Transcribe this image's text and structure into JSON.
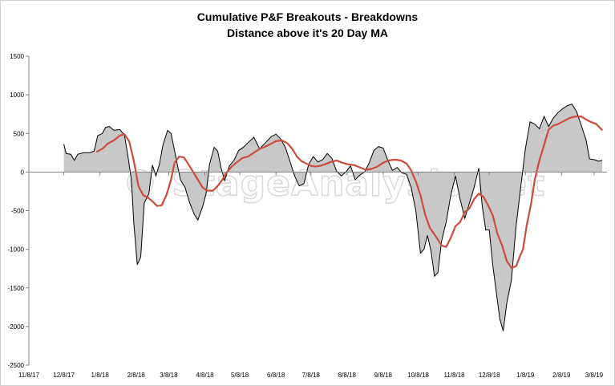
{
  "chart_data": {
    "type": "area",
    "title": "Cumulative P&F Breakouts - Breakdowns",
    "subtitle": "Distance above it's 20 Day MA",
    "xlabel": "",
    "ylabel": "",
    "ylim": [
      -2500,
      1500
    ],
    "y_ticks": [
      1500,
      1000,
      500,
      0,
      -500,
      -1000,
      -1500,
      -2000,
      -2500
    ],
    "x_ticks": [
      "11/8/17",
      "12/8/17",
      "1/8/18",
      "2/8/18",
      "3/8/18",
      "4/8/18",
      "5/8/18",
      "6/8/18",
      "7/8/18",
      "8/8/18",
      "9/8/18",
      "10/8/18",
      "11/8/18",
      "12/8/18",
      "1/8/19",
      "2/8/19",
      "3/8/19"
    ],
    "xlim": [
      "2017-11-08",
      "2019-03-19"
    ],
    "grid": false,
    "legend": "none",
    "watermark": "© StageAnalysis.net",
    "series": [
      {
        "style": "filled area",
        "fill_color": "#c8c8c8",
        "line_color": "#000000",
        "points": [
          [
            "2017-12-08",
            360
          ],
          [
            "2017-12-10",
            240
          ],
          [
            "2017-12-14",
            230
          ],
          [
            "2017-12-17",
            150
          ],
          [
            "2017-12-20",
            230
          ],
          [
            "2017-12-25",
            250
          ],
          [
            "2017-12-30",
            250
          ],
          [
            "2018-01-03",
            270
          ],
          [
            "2018-01-06",
            470
          ],
          [
            "2018-01-10",
            500
          ],
          [
            "2018-01-13",
            580
          ],
          [
            "2018-01-16",
            590
          ],
          [
            "2018-01-20",
            540
          ],
          [
            "2018-01-25",
            550
          ],
          [
            "2018-01-29",
            480
          ],
          [
            "2018-02-01",
            200
          ],
          [
            "2018-02-04",
            -100
          ],
          [
            "2018-02-06",
            -650
          ],
          [
            "2018-02-09",
            -1200
          ],
          [
            "2018-02-12",
            -1100
          ],
          [
            "2018-02-15",
            -400
          ],
          [
            "2018-02-19",
            -280
          ],
          [
            "2018-02-22",
            90
          ],
          [
            "2018-02-25",
            -50
          ],
          [
            "2018-02-28",
            100
          ],
          [
            "2018-03-03",
            350
          ],
          [
            "2018-03-07",
            540
          ],
          [
            "2018-03-10",
            500
          ],
          [
            "2018-03-14",
            200
          ],
          [
            "2018-03-18",
            -100
          ],
          [
            "2018-03-22",
            -200
          ],
          [
            "2018-03-26",
            -400
          ],
          [
            "2018-03-30",
            -550
          ],
          [
            "2018-04-02",
            -620
          ],
          [
            "2018-04-06",
            -450
          ],
          [
            "2018-04-09",
            -280
          ],
          [
            "2018-04-12",
            100
          ],
          [
            "2018-04-16",
            320
          ],
          [
            "2018-04-19",
            270
          ],
          [
            "2018-04-22",
            50
          ],
          [
            "2018-04-25",
            -110
          ],
          [
            "2018-04-29",
            80
          ],
          [
            "2018-05-03",
            150
          ],
          [
            "2018-05-07",
            280
          ],
          [
            "2018-05-11",
            320
          ],
          [
            "2018-05-15",
            380
          ],
          [
            "2018-05-20",
            450
          ],
          [
            "2018-05-25",
            300
          ],
          [
            "2018-05-30",
            380
          ],
          [
            "2018-06-04",
            460
          ],
          [
            "2018-06-08",
            490
          ],
          [
            "2018-06-12",
            430
          ],
          [
            "2018-06-16",
            320
          ],
          [
            "2018-06-20",
            140
          ],
          [
            "2018-06-24",
            -50
          ],
          [
            "2018-06-28",
            -180
          ],
          [
            "2018-07-02",
            -150
          ],
          [
            "2018-07-06",
            100
          ],
          [
            "2018-07-10",
            200
          ],
          [
            "2018-07-14",
            130
          ],
          [
            "2018-07-18",
            160
          ],
          [
            "2018-07-22",
            240
          ],
          [
            "2018-07-26",
            180
          ],
          [
            "2018-07-30",
            10
          ],
          [
            "2018-08-03",
            -50
          ],
          [
            "2018-08-07",
            0
          ],
          [
            "2018-08-11",
            80
          ],
          [
            "2018-08-15",
            -100
          ],
          [
            "2018-08-19",
            -40
          ],
          [
            "2018-08-23",
            0
          ],
          [
            "2018-08-27",
            120
          ],
          [
            "2018-08-31",
            280
          ],
          [
            "2018-09-04",
            330
          ],
          [
            "2018-09-08",
            310
          ],
          [
            "2018-09-12",
            150
          ],
          [
            "2018-09-16",
            20
          ],
          [
            "2018-09-20",
            60
          ],
          [
            "2018-09-24",
            -10
          ],
          [
            "2018-09-28",
            -30
          ],
          [
            "2018-10-02",
            -200
          ],
          [
            "2018-10-06",
            -500
          ],
          [
            "2018-10-10",
            -1050
          ],
          [
            "2018-10-13",
            -1000
          ],
          [
            "2018-10-16",
            -820
          ],
          [
            "2018-10-19",
            -1020
          ],
          [
            "2018-10-22",
            -1350
          ],
          [
            "2018-10-25",
            -1300
          ],
          [
            "2018-10-28",
            -900
          ],
          [
            "2018-11-01",
            -650
          ],
          [
            "2018-11-05",
            -300
          ],
          [
            "2018-11-09",
            -50
          ],
          [
            "2018-11-13",
            -350
          ],
          [
            "2018-11-17",
            -600
          ],
          [
            "2018-11-21",
            -400
          ],
          [
            "2018-11-25",
            -200
          ],
          [
            "2018-11-29",
            50
          ],
          [
            "2018-12-02",
            -450
          ],
          [
            "2018-12-05",
            -750
          ],
          [
            "2018-12-08",
            -750
          ],
          [
            "2018-12-11",
            -1200
          ],
          [
            "2018-12-14",
            -1550
          ],
          [
            "2018-12-17",
            -1900
          ],
          [
            "2018-12-20",
            -2060
          ],
          [
            "2018-12-23",
            -1700
          ],
          [
            "2018-12-27",
            -1400
          ],
          [
            "2018-12-31",
            -700
          ],
          [
            "2019-01-04",
            -200
          ],
          [
            "2019-01-08",
            300
          ],
          [
            "2019-01-12",
            650
          ],
          [
            "2019-01-16",
            620
          ],
          [
            "2019-01-20",
            560
          ],
          [
            "2019-01-24",
            720
          ],
          [
            "2019-01-28",
            590
          ],
          [
            "2019-02-01",
            700
          ],
          [
            "2019-02-05",
            770
          ],
          [
            "2019-02-09",
            820
          ],
          [
            "2019-02-13",
            860
          ],
          [
            "2019-02-17",
            880
          ],
          [
            "2019-02-21",
            780
          ],
          [
            "2019-02-25",
            600
          ],
          [
            "2019-03-01",
            420
          ],
          [
            "2019-03-04",
            170
          ],
          [
            "2019-03-08",
            160
          ],
          [
            "2019-03-12",
            140
          ],
          [
            "2019-03-15",
            150
          ]
        ]
      },
      {
        "style": "line",
        "line_color": "#cc4b3c",
        "points": [
          [
            "2018-01-05",
            260
          ],
          [
            "2018-01-10",
            300
          ],
          [
            "2018-01-15",
            370
          ],
          [
            "2018-01-20",
            410
          ],
          [
            "2018-01-25",
            470
          ],
          [
            "2018-01-29",
            490
          ],
          [
            "2018-02-02",
            400
          ],
          [
            "2018-02-06",
            150
          ],
          [
            "2018-02-10",
            -180
          ],
          [
            "2018-02-14",
            -300
          ],
          [
            "2018-02-18",
            -330
          ],
          [
            "2018-02-22",
            -380
          ],
          [
            "2018-02-26",
            -440
          ],
          [
            "2018-03-02",
            -430
          ],
          [
            "2018-03-06",
            -300
          ],
          [
            "2018-03-10",
            -100
          ],
          [
            "2018-03-13",
            120
          ],
          [
            "2018-03-17",
            200
          ],
          [
            "2018-03-21",
            190
          ],
          [
            "2018-03-25",
            100
          ],
          [
            "2018-03-29",
            0
          ],
          [
            "2018-04-02",
            -100
          ],
          [
            "2018-04-06",
            -200
          ],
          [
            "2018-04-10",
            -240
          ],
          [
            "2018-04-15",
            -240
          ],
          [
            "2018-04-19",
            -180
          ],
          [
            "2018-04-23",
            -100
          ],
          [
            "2018-04-27",
            0
          ],
          [
            "2018-05-01",
            70
          ],
          [
            "2018-05-05",
            120
          ],
          [
            "2018-05-10",
            180
          ],
          [
            "2018-05-15",
            200
          ],
          [
            "2018-05-20",
            250
          ],
          [
            "2018-05-25",
            300
          ],
          [
            "2018-05-30",
            330
          ],
          [
            "2018-06-04",
            370
          ],
          [
            "2018-06-08",
            400
          ],
          [
            "2018-06-13",
            410
          ],
          [
            "2018-06-18",
            370
          ],
          [
            "2018-06-22",
            300
          ],
          [
            "2018-06-26",
            200
          ],
          [
            "2018-06-30",
            140
          ],
          [
            "2018-07-04",
            110
          ],
          [
            "2018-07-08",
            80
          ],
          [
            "2018-07-12",
            70
          ],
          [
            "2018-07-16",
            80
          ],
          [
            "2018-07-20",
            100
          ],
          [
            "2018-07-25",
            130
          ],
          [
            "2018-07-30",
            150
          ],
          [
            "2018-08-04",
            120
          ],
          [
            "2018-08-09",
            100
          ],
          [
            "2018-08-14",
            90
          ],
          [
            "2018-08-19",
            60
          ],
          [
            "2018-08-24",
            30
          ],
          [
            "2018-08-29",
            40
          ],
          [
            "2018-09-03",
            70
          ],
          [
            "2018-09-08",
            120
          ],
          [
            "2018-09-13",
            150
          ],
          [
            "2018-09-18",
            160
          ],
          [
            "2018-09-23",
            150
          ],
          [
            "2018-09-28",
            110
          ],
          [
            "2018-10-02",
            20
          ],
          [
            "2018-10-06",
            -120
          ],
          [
            "2018-10-10",
            -300
          ],
          [
            "2018-10-14",
            -550
          ],
          [
            "2018-10-18",
            -720
          ],
          [
            "2018-10-23",
            -830
          ],
          [
            "2018-10-28",
            -950
          ],
          [
            "2018-11-01",
            -970
          ],
          [
            "2018-11-05",
            -850
          ],
          [
            "2018-11-09",
            -700
          ],
          [
            "2018-11-13",
            -650
          ],
          [
            "2018-11-17",
            -520
          ],
          [
            "2018-11-21",
            -470
          ],
          [
            "2018-11-25",
            -350
          ],
          [
            "2018-11-29",
            -280
          ],
          [
            "2018-12-03",
            -320
          ],
          [
            "2018-12-07",
            -430
          ],
          [
            "2018-12-11",
            -560
          ],
          [
            "2018-12-15",
            -800
          ],
          [
            "2018-12-19",
            -950
          ],
          [
            "2018-12-23",
            -1150
          ],
          [
            "2018-12-27",
            -1240
          ],
          [
            "2018-12-31",
            -1220
          ],
          [
            "2019-01-03",
            -1100
          ],
          [
            "2019-01-06",
            -1000
          ],
          [
            "2019-01-09",
            -700
          ],
          [
            "2019-01-13",
            -400
          ],
          [
            "2019-01-16",
            -100
          ],
          [
            "2019-01-20",
            150
          ],
          [
            "2019-01-24",
            350
          ],
          [
            "2019-01-28",
            550
          ],
          [
            "2019-02-01",
            600
          ],
          [
            "2019-02-05",
            620
          ],
          [
            "2019-02-10",
            660
          ],
          [
            "2019-02-15",
            700
          ],
          [
            "2019-02-20",
            720
          ],
          [
            "2019-02-25",
            720
          ],
          [
            "2019-03-01",
            680
          ],
          [
            "2019-03-05",
            650
          ],
          [
            "2019-03-10",
            620
          ],
          [
            "2019-03-15",
            540
          ]
        ]
      }
    ]
  }
}
